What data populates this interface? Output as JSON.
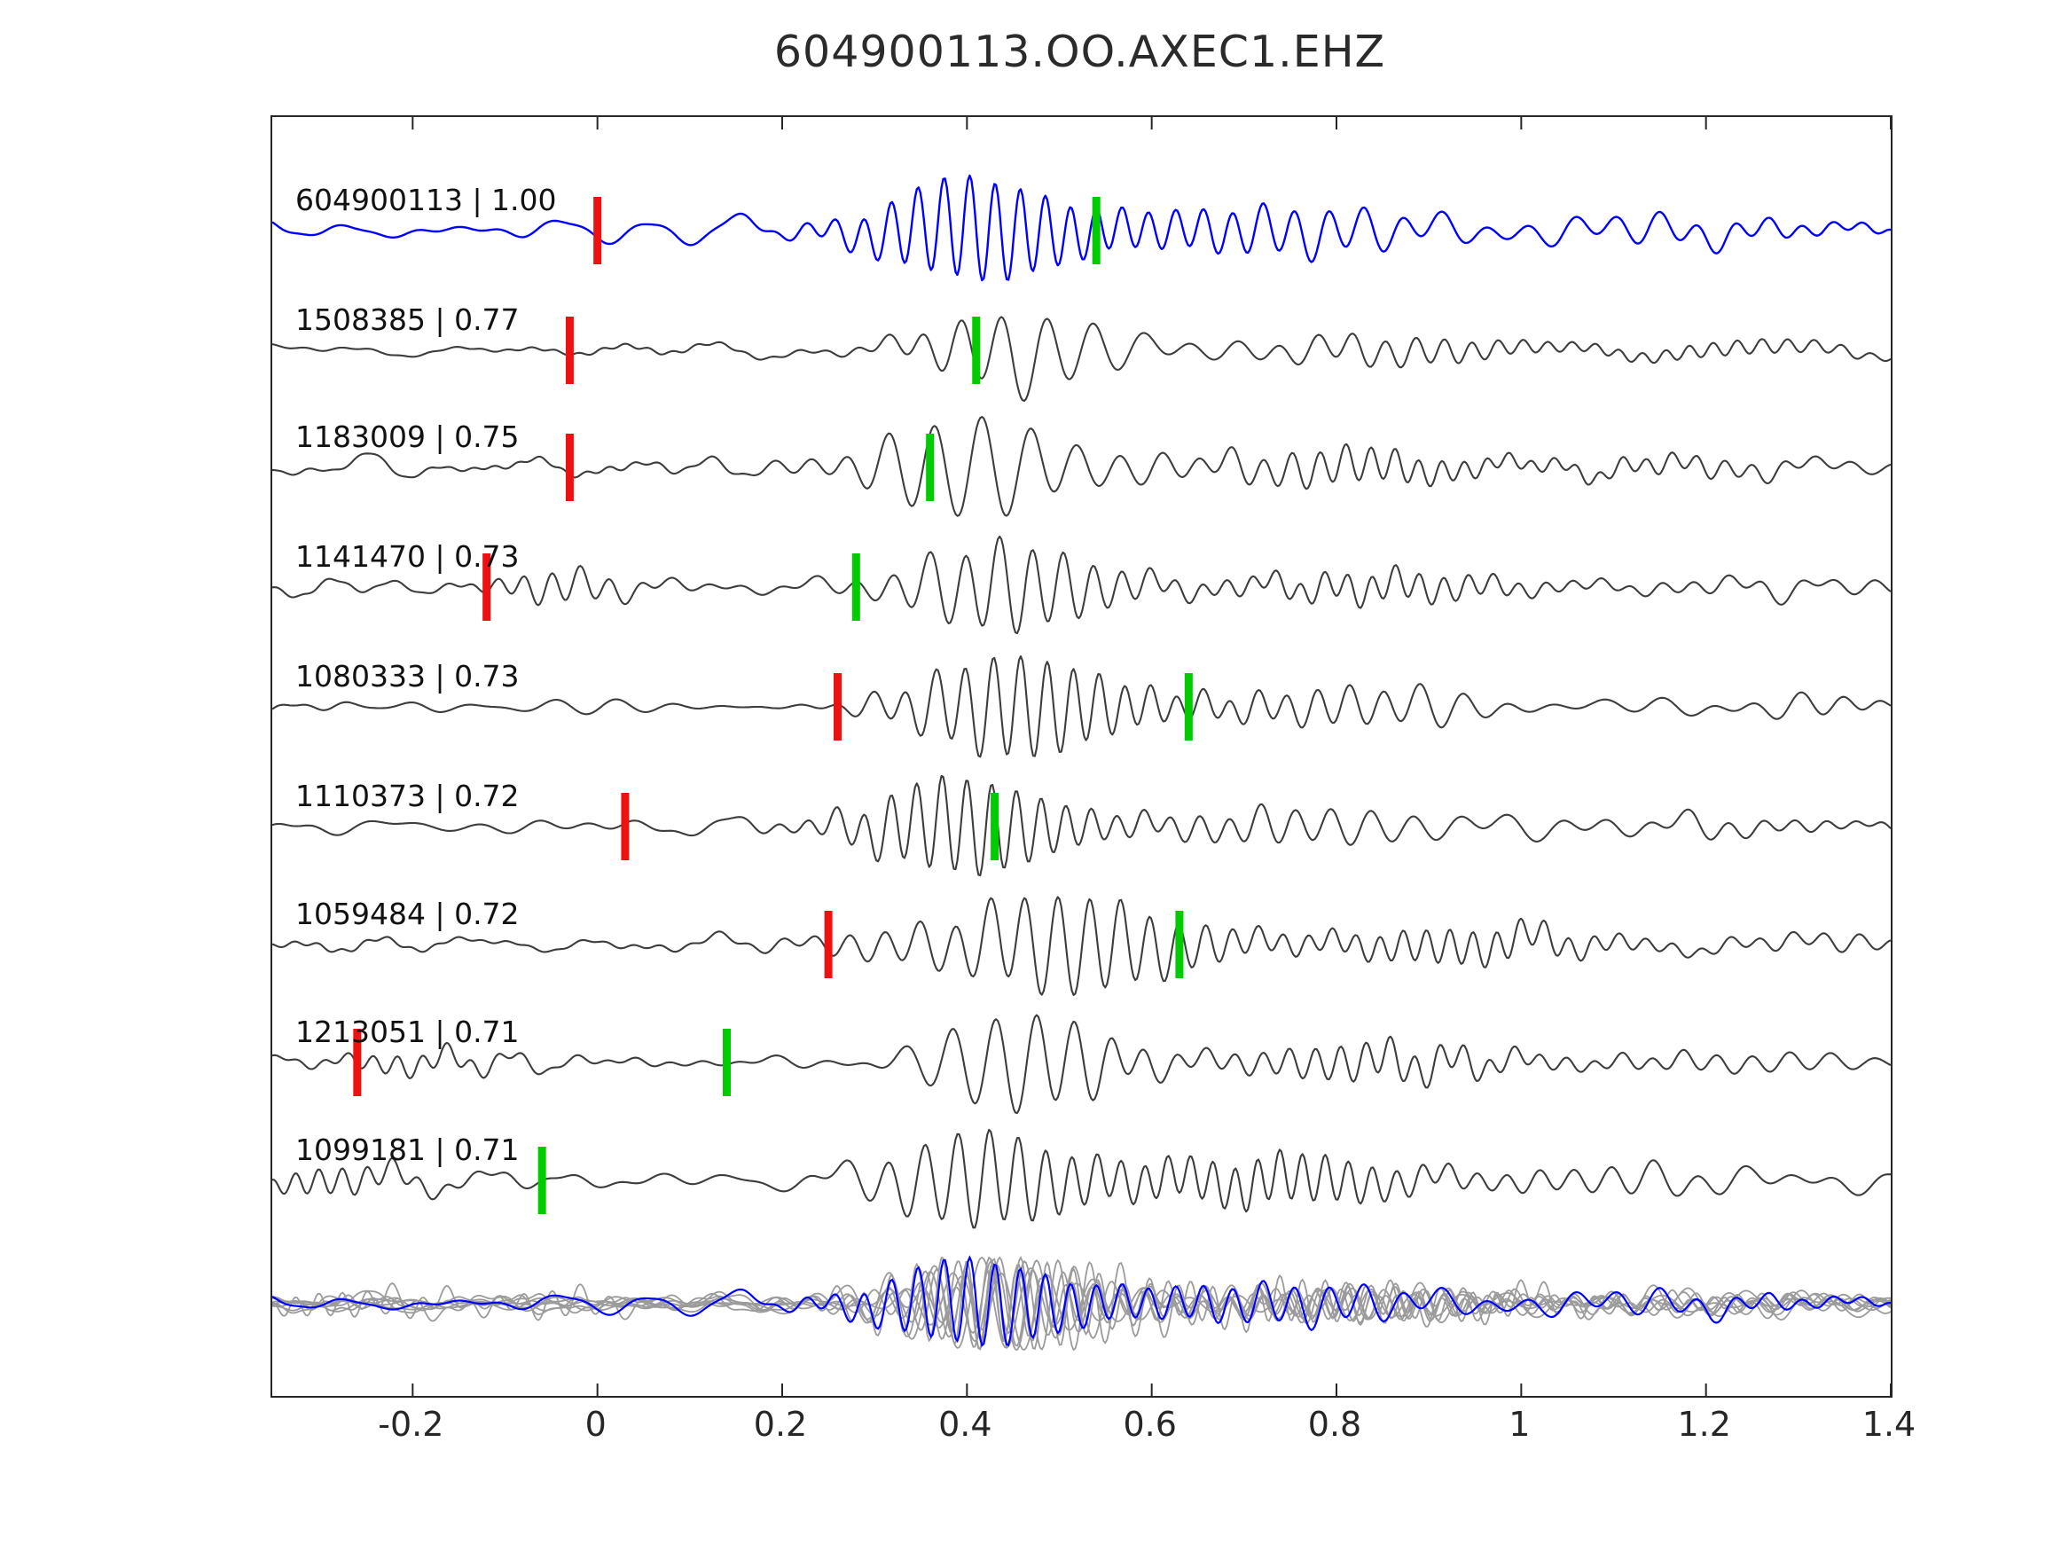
{
  "chart_data": {
    "type": "line",
    "title": "604900113.OO.AXEC1.EHZ",
    "xlabel": "",
    "ylabel": "",
    "xlim": [
      -0.352,
      1.4
    ],
    "x_ticks": [
      -0.2,
      0,
      0.2,
      0.4,
      0.6,
      0.8,
      1,
      1.2,
      1.4
    ],
    "x_tick_labels": [
      "-0.2",
      "0",
      "0.2",
      "0.4",
      "0.6",
      "0.8",
      "1",
      "1.2",
      "1.4"
    ],
    "grid": false,
    "legend": "none",
    "colors": {
      "template_trace": "#0000ff",
      "detection_trace": "#3d3d3d",
      "overlay_trace": "#9b9b9b",
      "red_pick": "#ee1111",
      "green_pick": "#00cc00",
      "axis": "#262626"
    },
    "traces": [
      {
        "label": "604900113 | 1.00",
        "event_id": "604900113",
        "correlation": 1.0,
        "is_template": true,
        "red_pick_x": 0.0,
        "green_pick_x": 0.54
      },
      {
        "label": "1508385 | 0.77",
        "event_id": "1508385",
        "correlation": 0.77,
        "is_template": false,
        "red_pick_x": -0.03,
        "green_pick_x": 0.41
      },
      {
        "label": "1183009 | 0.75",
        "event_id": "1183009",
        "correlation": 0.75,
        "is_template": false,
        "red_pick_x": -0.03,
        "green_pick_x": 0.36
      },
      {
        "label": "1141470 | 0.73",
        "event_id": "1141470",
        "correlation": 0.73,
        "is_template": false,
        "red_pick_x": -0.12,
        "green_pick_x": 0.28
      },
      {
        "label": "1080333 | 0.73",
        "event_id": "1080333",
        "correlation": 0.73,
        "is_template": false,
        "red_pick_x": 0.26,
        "green_pick_x": 0.64
      },
      {
        "label": "1110373 | 0.72",
        "event_id": "1110373",
        "correlation": 0.72,
        "is_template": false,
        "red_pick_x": 0.03,
        "green_pick_x": 0.43
      },
      {
        "label": "1059484 | 0.72",
        "event_id": "1059484",
        "correlation": 0.72,
        "is_template": false,
        "red_pick_x": 0.25,
        "green_pick_x": 0.63
      },
      {
        "label": "1213051 | 0.71",
        "event_id": "1213051",
        "correlation": 0.71,
        "is_template": false,
        "red_pick_x": -0.26,
        "green_pick_x": 0.14
      },
      {
        "label": "1099181 | 0.71",
        "event_id": "1099181",
        "correlation": 0.71,
        "is_template": false,
        "red_pick_x": null,
        "green_pick_x": -0.06
      }
    ],
    "overlay": {
      "description": "All detection waveforms overlaid in gray with the template waveform in blue",
      "gray_count": 8,
      "has_blue_template": true
    }
  }
}
